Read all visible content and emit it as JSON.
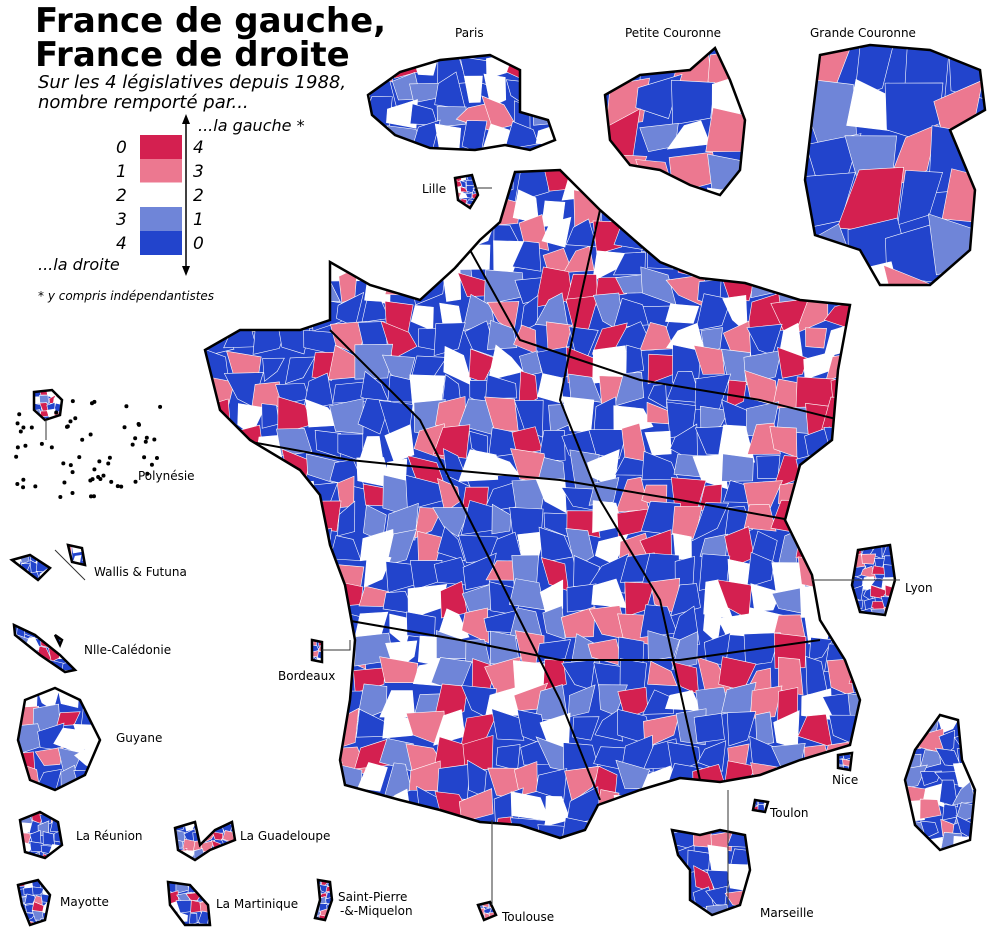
{
  "title": [
    "France de gauche,",
    "France de droite"
  ],
  "subtitle": [
    "Sur les 4 législatives depuis 1988,",
    "nombre remporté par..."
  ],
  "legend": {
    "top_label": "...la gauche *",
    "bottom_label": "...la droite",
    "left": [
      "0",
      "1",
      "2",
      "3",
      "4"
    ],
    "right": [
      "4",
      "3",
      "2",
      "1",
      "0"
    ],
    "colors": [
      "#d42050",
      "#ec7890",
      "#ffffff",
      "#6f85d8",
      "#2244cc"
    ]
  },
  "footnote": "* y compris  indépendantistes",
  "insets": [
    "Paris",
    "Petite Couronne",
    "Grande Couronne"
  ],
  "cities": [
    "Lille",
    "Lyon",
    "Bordeaux",
    "Nice",
    "Toulon",
    "Toulouse",
    "Marseille"
  ],
  "overseas": [
    "Polynésie",
    "Wallis & Futuna",
    "Nlle-Calédonie",
    "Guyane",
    "La Réunion",
    "La Guadeloupe",
    "Mayotte",
    "La Martinique",
    "Saint-Pierre",
    "-&-Miquelon"
  ]
}
